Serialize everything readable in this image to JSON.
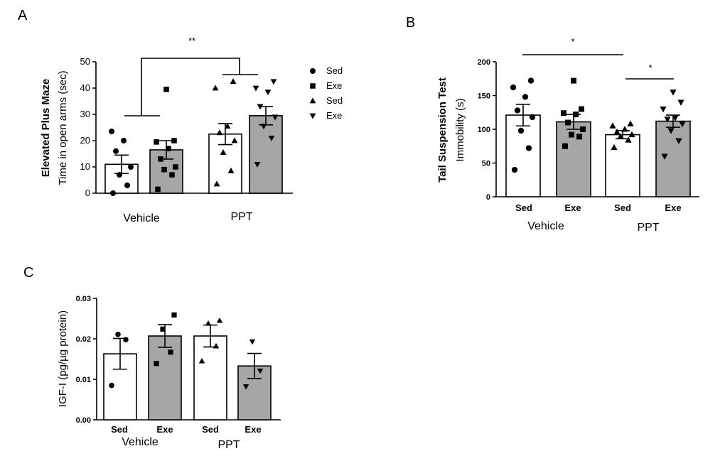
{
  "chart_data": [
    {
      "panel": "A",
      "type": "bar",
      "ylabel_bold": "Elevated Plus Maze",
      "ylabel": "Time in open arms (sec)",
      "ylim": [
        0,
        50
      ],
      "yticks": [
        "0",
        "10",
        "20",
        "30",
        "40",
        "50"
      ],
      "groups": [
        "Vehicle",
        "PPT"
      ],
      "bars": [
        {
          "name": "Vehicle-Sed",
          "fill": "#ffffff",
          "marker": "circle",
          "mean": 11,
          "sem": 3.5,
          "points": [
            0,
            3,
            7,
            10,
            16,
            20,
            23.5
          ]
        },
        {
          "name": "Vehicle-Exe",
          "fill": "#a6a6a6",
          "marker": "square",
          "mean": 16.5,
          "sem": 3.5,
          "points": [
            1.5,
            7,
            9,
            10,
            13,
            17,
            19.5,
            20,
            39.5
          ]
        },
        {
          "name": "PPT-Sed",
          "fill": "#ffffff",
          "marker": "triangle-up",
          "mean": 22.5,
          "sem": 4,
          "points": [
            3.5,
            8.5,
            15.5,
            20,
            23,
            25.5,
            40,
            42.5
          ]
        },
        {
          "name": "PPT-Exe",
          "fill": "#a6a6a6",
          "marker": "triangle-down",
          "mean": 29.5,
          "sem": 3.5,
          "points": [
            11,
            21,
            25.5,
            29,
            33,
            38.5,
            40,
            42.5
          ]
        }
      ],
      "legend": [
        {
          "marker": "circle",
          "label": "Sed"
        },
        {
          "marker": "square",
          "label": "Exe"
        },
        {
          "marker": "triangle-up",
          "label": "Sed"
        },
        {
          "marker": "triangle-down",
          "label": "Exe"
        }
      ],
      "significance": [
        "**"
      ]
    },
    {
      "panel": "B",
      "type": "bar",
      "ylabel_bold": "Tail Suspension Test",
      "ylabel": "Immobility (s)",
      "ylim": [
        0,
        200
      ],
      "yticks": [
        "0",
        "50",
        "100",
        "150",
        "200"
      ],
      "categories": [
        "Sed",
        "Exe",
        "Sed",
        "Exe"
      ],
      "groups": [
        "Vehicle",
        "PPT"
      ],
      "bars": [
        {
          "name": "Vehicle-Sed",
          "fill": "#ffffff",
          "marker": "circle",
          "mean": 121,
          "sem": 16,
          "points": [
            40,
            72,
            98,
            118,
            128,
            148,
            162,
            172
          ]
        },
        {
          "name": "Vehicle-Exe",
          "fill": "#a6a6a6",
          "marker": "square",
          "mean": 111,
          "sem": 11,
          "points": [
            75,
            89,
            92,
            100,
            110,
            122,
            124,
            130,
            172
          ]
        },
        {
          "name": "PPT-Sed",
          "fill": "#ffffff",
          "marker": "triangle-up",
          "mean": 92,
          "sem": 6,
          "points": [
            73,
            84,
            89,
            92,
            96,
            100,
            105,
            108
          ]
        },
        {
          "name": "PPT-Exe",
          "fill": "#a6a6a6",
          "marker": "triangle-down",
          "mean": 112,
          "sem": 9,
          "points": [
            60,
            83,
            98,
            108,
            115,
            117,
            130,
            140,
            155
          ]
        }
      ],
      "significance": [
        "*",
        "*"
      ]
    },
    {
      "panel": "C",
      "type": "bar",
      "ylabel": "IGF-I (pg/µg protein)",
      "ylim": [
        0,
        0.03
      ],
      "yticks": [
        "0.00",
        "0.01",
        "0.02",
        "0.03"
      ],
      "categories": [
        "Sed",
        "Exe",
        "Sed",
        "Exe"
      ],
      "groups": [
        "Vehicle",
        "PPT"
      ],
      "bars": [
        {
          "name": "Vehicle-Sed",
          "fill": "#ffffff",
          "marker": "circle",
          "mean": 0.0163,
          "sem": 0.0038,
          "points": [
            0.0085,
            0.0198,
            0.0211
          ]
        },
        {
          "name": "Vehicle-Exe",
          "fill": "#a6a6a6",
          "marker": "square",
          "mean": 0.0207,
          "sem": 0.0028,
          "points": [
            0.0139,
            0.0167,
            0.0224,
            0.0259
          ]
        },
        {
          "name": "PPT-Sed",
          "fill": "#ffffff",
          "marker": "triangle-up",
          "mean": 0.0207,
          "sem": 0.0027,
          "points": [
            0.0145,
            0.0182,
            0.0238,
            0.0245
          ]
        },
        {
          "name": "PPT-Exe",
          "fill": "#a6a6a6",
          "marker": "triangle-down",
          "mean": 0.0133,
          "sem": 0.0031,
          "points": [
            0.0082,
            0.0121,
            0.0193
          ]
        }
      ]
    }
  ]
}
